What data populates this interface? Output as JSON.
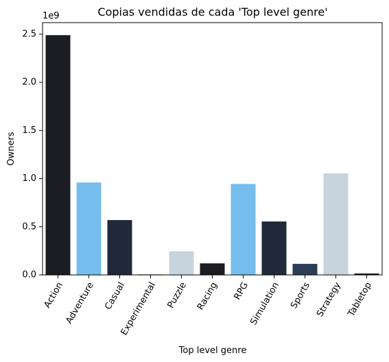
{
  "chart_data": {
    "type": "bar",
    "title": "Copias vendidas de cada 'Top level genre'",
    "xlabel": "Top level genre",
    "ylabel": "Owners",
    "y_offset_label": "1e9",
    "ylim": [
      0,
      2.62
    ],
    "yticks": [
      0.0,
      0.5,
      1.0,
      1.5,
      2.0,
      2.5
    ],
    "ytick_labels": [
      "0.0",
      "0.5",
      "1.0",
      "1.5",
      "2.0",
      "2.5"
    ],
    "categories": [
      "Action",
      "Adventure",
      "Casual",
      "Experimental",
      "Puzzle",
      "Racing",
      "RPG",
      "Simulation",
      "Sports",
      "Strategy",
      "Tabletop"
    ],
    "values": [
      2.49,
      0.96,
      0.57,
      0.005,
      0.245,
      0.12,
      0.945,
      0.555,
      0.115,
      1.055,
      0.015
    ],
    "colors": [
      "#1b1d22",
      "#75bdec",
      "#212a3a",
      "#1b1d22",
      "#c7d4de",
      "#1b1d22",
      "#75bdec",
      "#212a3a",
      "#2b3e56",
      "#c7d4de",
      "#1b1d22"
    ],
    "grid": false,
    "legend": "none",
    "xtick_rotation": -60
  }
}
